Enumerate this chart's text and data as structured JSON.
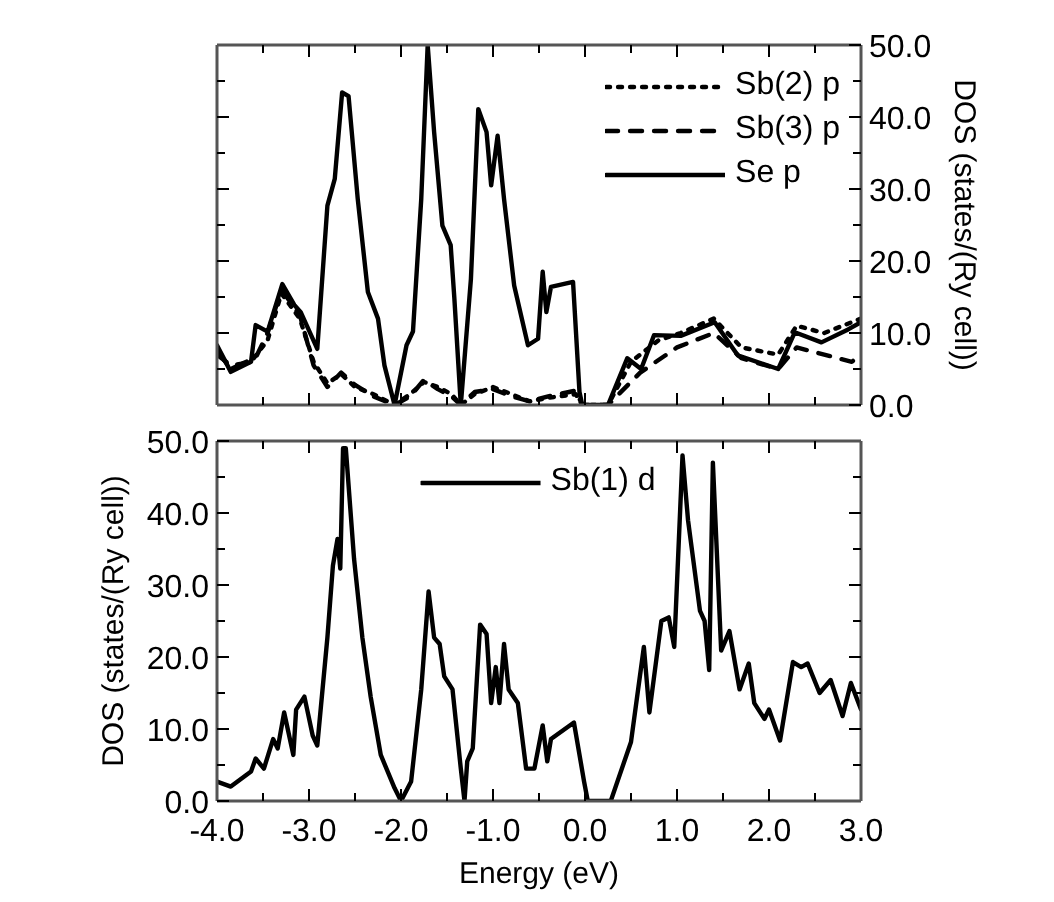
{
  "chart_data": [
    {
      "type": "line",
      "ylabel": "DOS (states/(Ry cell))",
      "xlim": [
        -4.0,
        3.0
      ],
      "xticks": [
        {
          "value": -4,
          "label": null
        },
        {
          "value": -3,
          "label": null
        },
        {
          "value": -2,
          "label": null
        },
        {
          "value": -1,
          "label": null
        },
        {
          "value": 0,
          "label": null
        },
        {
          "value": 1,
          "label": null
        },
        {
          "value": 2,
          "label": null
        },
        {
          "value": 3,
          "label": null
        }
      ],
      "ylim": [
        0,
        50
      ],
      "yticks": [
        {
          "value": 0,
          "label": "0.0"
        },
        {
          "value": 10,
          "label": "10.0"
        },
        {
          "value": 20,
          "label": "20.0"
        },
        {
          "value": 30,
          "label": "30.0"
        },
        {
          "value": 40,
          "label": "40.0"
        },
        {
          "value": 50,
          "label": "50.0"
        }
      ],
      "tick_labels": "y",
      "legend": "top right",
      "grid": false,
      "series": [
        {
          "name": "Sb(2) p",
          "color": "#000000",
          "line_style": "dotted",
          "x": [
            -4.0,
            -3.85,
            -3.6,
            -3.45,
            -3.3,
            -3.1,
            -2.95,
            -2.8,
            -2.65,
            -2.5,
            -2.3,
            -2.07,
            -1.9,
            -1.75,
            -1.6,
            -1.45,
            -1.35,
            -1.2,
            -1.0,
            -0.8,
            -0.6,
            -0.4,
            -0.1,
            -0.03,
            0.25,
            0.5,
            0.8,
            1.04,
            1.4,
            1.7,
            2.1,
            2.3,
            2.6,
            2.9,
            3.0
          ],
          "values": [
            7.5,
            5,
            6.5,
            9,
            15.5,
            12,
            6,
            3,
            4.3,
            2.5,
            1.5,
            0,
            1.5,
            3.2,
            2.5,
            1.5,
            0,
            1.5,
            2.5,
            1.5,
            0.5,
            1.0,
            1.5,
            0,
            0,
            6,
            9,
            10,
            12,
            8,
            7,
            11,
            10,
            11.5,
            12
          ]
        },
        {
          "name": "Sb(3) p",
          "color": "#000000",
          "line_style": "dashed",
          "x": [
            -4.0,
            -3.85,
            -3.6,
            -3.45,
            -3.3,
            -3.1,
            -2.95,
            -2.8,
            -2.65,
            -2.5,
            -2.3,
            -2.07,
            -1.9,
            -1.75,
            -1.6,
            -1.45,
            -1.35,
            -1.2,
            -1.0,
            -0.8,
            -0.6,
            -0.4,
            -0.1,
            -0.03,
            0.25,
            0.6,
            1.0,
            1.4,
            1.7,
            2.1,
            2.3,
            2.6,
            2.9,
            3.0
          ],
          "values": [
            7,
            5.5,
            6,
            10,
            16,
            12.5,
            5.5,
            2.5,
            4.5,
            2.8,
            1.2,
            0,
            1.2,
            3.5,
            2.2,
            1.2,
            0,
            1.8,
            2.2,
            1.2,
            0.5,
            1.2,
            2.0,
            0,
            0,
            4.5,
            8,
            10,
            6.5,
            5,
            8,
            7,
            6,
            7
          ]
        },
        {
          "name": "Se p",
          "color": "#000000",
          "line_style": "solid",
          "x": [
            -4.0,
            -3.85,
            -3.63,
            -3.58,
            -3.45,
            -3.29,
            -3.16,
            -3.09,
            -2.91,
            -2.8,
            -2.72,
            -2.64,
            -2.57,
            -2.47,
            -2.36,
            -2.25,
            -2.18,
            -2.07,
            -1.94,
            -1.87,
            -1.78,
            -1.71,
            -1.64,
            -1.55,
            -1.46,
            -1.42,
            -1.35,
            -1.24,
            -1.16,
            -1.07,
            -1.02,
            -0.95,
            -0.88,
            -0.77,
            -0.62,
            -0.51,
            -0.46,
            -0.42,
            -0.37,
            -0.13,
            -0.06,
            -0.03,
            0.25,
            0.46,
            0.61,
            0.75,
            1.04,
            1.41,
            1.66,
            2.1,
            2.28,
            2.57,
            2.86,
            3.0
          ],
          "values": [
            8.3,
            4.6,
            6.0,
            11.1,
            10.2,
            16.8,
            13.9,
            12.9,
            7.8,
            27.7,
            31.4,
            43.4,
            42.9,
            28.6,
            15.7,
            12.0,
            5.5,
            0,
            8.3,
            10.2,
            28.6,
            50.0,
            37.9,
            24.9,
            22.2,
            14.8,
            0,
            17.5,
            41.1,
            37.9,
            30.5,
            37.4,
            28.6,
            16.6,
            8.3,
            9.2,
            18.5,
            12.9,
            16.4,
            17.1,
            1.8,
            0,
            0,
            6.5,
            5.0,
            9.7,
            9.6,
            11.5,
            6.9,
            5.0,
            10.1,
            8.7,
            10.5,
            11.5
          ]
        }
      ]
    },
    {
      "type": "line",
      "xlabel": "Energy (eV)",
      "ylabel": "DOS (states/(Ry cell))",
      "xlim": [
        -4.0,
        3.0
      ],
      "xticks": [
        {
          "value": -4,
          "label": "-4.0"
        },
        {
          "value": -3,
          "label": "-3.0"
        },
        {
          "value": -2,
          "label": "-2.0"
        },
        {
          "value": -1,
          "label": "-1.0"
        },
        {
          "value": 0,
          "label": "0.0"
        },
        {
          "value": 1,
          "label": "1.0"
        },
        {
          "value": 2,
          "label": "2.0"
        },
        {
          "value": 3,
          "label": "3.0"
        }
      ],
      "ylim": [
        0,
        50
      ],
      "yticks": [
        {
          "value": 0,
          "label": "0.0"
        },
        {
          "value": 10,
          "label": "10.0"
        },
        {
          "value": 20,
          "label": "20.0"
        },
        {
          "value": 30,
          "label": "30.0"
        },
        {
          "value": 40,
          "label": "40.0"
        },
        {
          "value": 50,
          "label": "50.0"
        }
      ],
      "legend": "top",
      "grid": false,
      "series": [
        {
          "name": "Sb(1) d",
          "color": "#000000",
          "line_style": "solid",
          "x": [
            -4.0,
            -3.85,
            -3.63,
            -3.58,
            -3.49,
            -3.39,
            -3.34,
            -3.27,
            -3.17,
            -3.14,
            -3.05,
            -2.96,
            -2.91,
            -2.8,
            -2.74,
            -2.69,
            -2.66,
            -2.63,
            -2.6,
            -2.51,
            -2.42,
            -2.33,
            -2.22,
            -2.07,
            -2.0,
            -1.89,
            -1.78,
            -1.7,
            -1.64,
            -1.58,
            -1.53,
            -1.44,
            -1.35,
            -1.31,
            -1.28,
            -1.22,
            -1.14,
            -1.07,
            -1.02,
            -0.97,
            -0.93,
            -0.88,
            -0.83,
            -0.73,
            -0.64,
            -0.55,
            -0.46,
            -0.41,
            -0.37,
            -0.12,
            -0.01,
            0.03,
            0.28,
            0.5,
            0.64,
            0.7,
            0.83,
            0.91,
            0.97,
            1.06,
            1.12,
            1.25,
            1.3,
            1.35,
            1.39,
            1.48,
            1.57,
            1.68,
            1.78,
            1.84,
            1.95,
            2.0,
            2.12,
            2.26,
            2.35,
            2.42,
            2.55,
            2.67,
            2.8,
            2.89,
            3.0
          ],
          "values": [
            2.7,
            2.0,
            4.1,
            5.9,
            4.5,
            8.6,
            7.3,
            12.3,
            6.4,
            12.7,
            14.5,
            9.1,
            7.7,
            22.7,
            32.7,
            36.4,
            32.3,
            49,
            49,
            33.6,
            22.7,
            14.5,
            6.4,
            1.8,
            0,
            2.7,
            15.5,
            29.1,
            22.7,
            21.8,
            17.3,
            15.5,
            4.5,
            0,
            5.5,
            7.3,
            24.5,
            23.2,
            13.6,
            18.6,
            13.6,
            21.8,
            15.5,
            13.6,
            4.5,
            4.5,
            10.5,
            5.5,
            8.6,
            10.9,
            2.7,
            0,
            0,
            8.2,
            21.4,
            12.3,
            25,
            25.5,
            21.4,
            48,
            39,
            26.4,
            25,
            18.2,
            47,
            20.9,
            23.6,
            15.5,
            19.1,
            13.6,
            11.4,
            12.7,
            8.4,
            19.3,
            18.6,
            19.1,
            15.0,
            16.8,
            11.8,
            16.4,
            12.7
          ]
        }
      ]
    }
  ]
}
